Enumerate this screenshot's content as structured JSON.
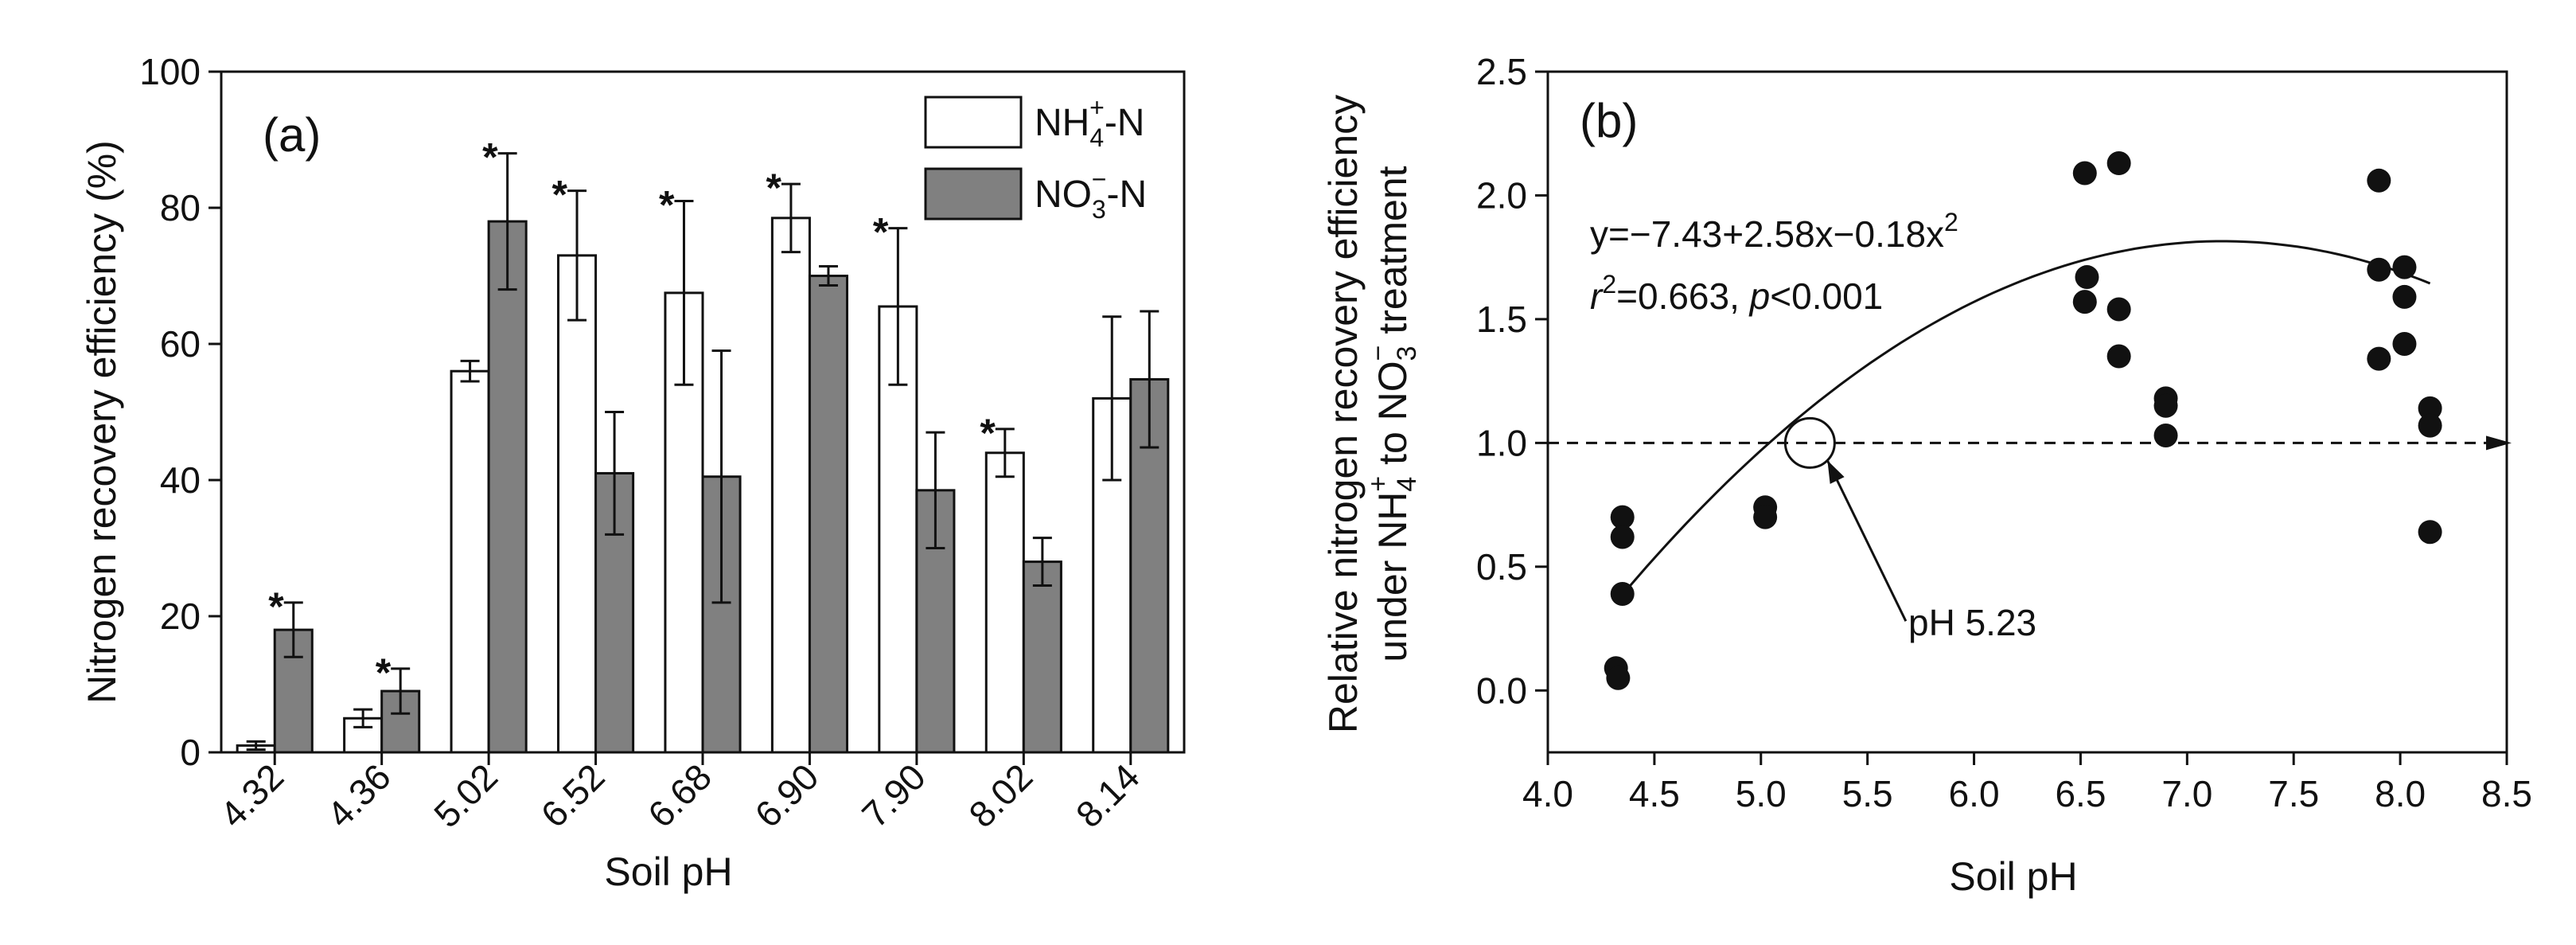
{
  "chart_data": [
    {
      "type": "bar",
      "panel": "(a)",
      "categories": [
        "4.32",
        "4.36",
        "5.02",
        "6.52",
        "6.68",
        "6.90",
        "7.90",
        "8.02",
        "8.14"
      ],
      "series": [
        {
          "name": "NH4+-N",
          "name_main": "NH",
          "name_sub": "4",
          "name_sup": "+",
          "name_tail": "-N",
          "color": "#ffffff",
          "values": [
            1,
            5,
            56,
            73,
            67.5,
            78.5,
            65.5,
            44,
            52
          ],
          "errors": [
            0.6,
            1.3,
            1.5,
            9.5,
            13.5,
            5,
            11.5,
            3.5,
            12
          ]
        },
        {
          "name": "NO3--N",
          "name_main": "NO",
          "name_sub": "3",
          "name_sup": "−",
          "name_tail": "-N",
          "color": "#808080",
          "values": [
            18,
            9,
            78,
            41,
            40.5,
            70,
            38.5,
            28,
            54.8
          ],
          "errors": [
            4,
            3.3,
            10,
            9,
            18.5,
            1.4,
            8.5,
            3.5,
            10
          ]
        }
      ],
      "significance": [
        {
          "category": "4.32",
          "series": 1,
          "mark": "*"
        },
        {
          "category": "4.36",
          "series": 1,
          "mark": "*"
        },
        {
          "category": "5.02",
          "series": 1,
          "mark": "*"
        },
        {
          "category": "6.52",
          "series": 0,
          "mark": "*"
        },
        {
          "category": "6.68",
          "series": 0,
          "mark": "*"
        },
        {
          "category": "6.90",
          "series": 0,
          "mark": "*"
        },
        {
          "category": "7.90",
          "series": 0,
          "mark": "*"
        },
        {
          "category": "8.02",
          "series": 0,
          "mark": "*"
        }
      ],
      "xlabel": "Soil pH",
      "ylabel": "Nitrogen recovery efficiency (%)",
      "ylim": [
        0,
        100
      ],
      "yticks": [
        "0",
        "20",
        "40",
        "60",
        "80",
        "100"
      ],
      "legend_position": "top-right"
    },
    {
      "type": "scatter",
      "panel": "(b)",
      "points": [
        [
          4.32,
          0.09
        ],
        [
          4.33,
          0.05
        ],
        [
          4.35,
          0.7
        ],
        [
          4.35,
          0.62
        ],
        [
          4.35,
          0.39
        ],
        [
          5.02,
          0.74
        ],
        [
          5.02,
          0.7
        ],
        [
          6.52,
          2.09
        ],
        [
          6.53,
          1.67
        ],
        [
          6.52,
          1.57
        ],
        [
          6.68,
          2.13
        ],
        [
          6.68,
          1.54
        ],
        [
          6.68,
          1.35
        ],
        [
          6.9,
          1.18
        ],
        [
          6.9,
          1.15
        ],
        [
          6.9,
          1.03
        ],
        [
          7.9,
          2.06
        ],
        [
          7.9,
          1.7
        ],
        [
          7.9,
          1.34
        ],
        [
          8.02,
          1.71
        ],
        [
          8.02,
          1.59
        ],
        [
          8.02,
          1.4
        ],
        [
          8.14,
          1.14
        ],
        [
          8.14,
          1.07
        ],
        [
          8.14,
          0.64
        ]
      ],
      "fit": {
        "a": -7.43,
        "b": 2.58,
        "c": -0.18,
        "x_from": 4.32,
        "x_to": 8.14
      },
      "equation": "y=−7.43+2.58x−0.18x",
      "equation_exp": "2",
      "r2_r": "r",
      "r2_exp": "2",
      "r2_rest": "=0.663, ",
      "p_label": "p",
      "p_rest": "<0.001",
      "reference_line": 1.0,
      "crossing": {
        "x": 5.23,
        "y": 1.0,
        "label": "pH 5.23"
      },
      "xlabel": "Soil pH",
      "ylabel_line1": "Relative nitrogen recovery efficiency",
      "ylabel_line2_a": "under NH",
      "ylabel_line2_sub1": "4",
      "ylabel_line2_sup1": "+",
      "ylabel_line2_b": " to NO",
      "ylabel_line2_sub2": "3",
      "ylabel_line2_sup2": "−",
      "ylabel_line2_c": " treatment",
      "xlim": [
        4.0,
        8.5
      ],
      "ylim": [
        -0.25,
        2.5
      ],
      "xticks": [
        "4.0",
        "4.5",
        "5.0",
        "5.5",
        "6.0",
        "6.5",
        "7.0",
        "7.5",
        "8.0",
        "8.5"
      ],
      "yticks": [
        "0.0",
        "0.5",
        "1.0",
        "1.5",
        "2.0",
        "2.5"
      ]
    }
  ]
}
